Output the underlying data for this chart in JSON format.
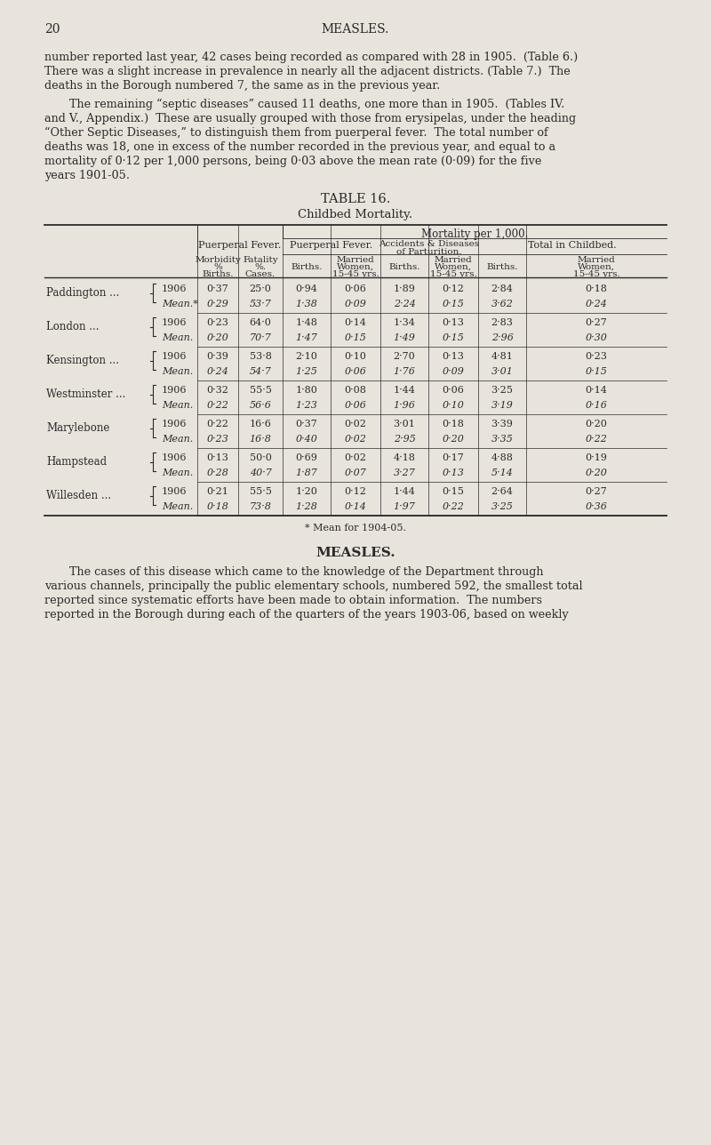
{
  "bg_color": "#e8e4dc",
  "text_color": "#2a2a2a",
  "page_number": "20",
  "page_header": "MEASLES.",
  "para1": "number reported last year, 42 cases being recorded as compared with 28 in 1905.  (Table 6.)\nThere was a slight increase in prevalence in nearly all the adjacent districts. (Table 7.)  The\ndeaths in the Borough numbered 7, the same as in the previous year.",
  "para2": "The remaining “septic diseases” caused 11 deaths, one more than in 1905.  (Tables IV.\nand V., Appendix.)  These are usually grouped with those from erysipelas, under the heading\n“Other Septic Diseases,” to distinguish them from puerperal fever.  The total number of\ndeaths was 18, one in excess of the number recorded in the previous year, and equal to a\nmortality of 0·12 per 1,000 persons, being 0·03 above the mean rate (0·09) for the five\nyears 1901-05.",
  "table_title": "TABLE 16.",
  "table_subtitle": "Childbed Mortality.",
  "rows": [
    {
      "district": "Paddington",
      "suffix": "...",
      "year": "1906",
      "morb": "0·37",
      "fat": "25·0",
      "pf_b": "0·94",
      "pf_mw": "0·06",
      "ac_b": "1·89",
      "ac_mw": "0·12",
      "tot_b": "2·84",
      "tot_mw": "0·18"
    },
    {
      "district": "Paddington",
      "suffix": "...",
      "year": "Mean.*",
      "morb": "0·29",
      "fat": "53·7",
      "pf_b": "1·38",
      "pf_mw": "0·09",
      "ac_b": "2·24",
      "ac_mw": "0·15",
      "tot_b": "3·62",
      "tot_mw": "0·24"
    },
    {
      "district": "London",
      "suffix": "...",
      "year": "1906",
      "morb": "0·23",
      "fat": "64·0",
      "pf_b": "1·48",
      "pf_mw": "0·14",
      "ac_b": "1·34",
      "ac_mw": "0·13",
      "tot_b": "2·83",
      "tot_mw": "0·27"
    },
    {
      "district": "London",
      "suffix": "...",
      "year": "Mean.",
      "morb": "0·20",
      "fat": "70·7",
      "pf_b": "1·47",
      "pf_mw": "0·15",
      "ac_b": "1·49",
      "ac_mw": "0·15",
      "tot_b": "2·96",
      "tot_mw": "0·30"
    },
    {
      "district": "Kensington",
      "suffix": "...",
      "year": "1906",
      "morb": "0·39",
      "fat": "53·8",
      "pf_b": "2·10",
      "pf_mw": "0·10",
      "ac_b": "2·70",
      "ac_mw": "0·13",
      "tot_b": "4·81",
      "tot_mw": "0·23"
    },
    {
      "district": "Kensington",
      "suffix": "...",
      "year": "Mean.",
      "morb": "0·24",
      "fat": "54·7",
      "pf_b": "1·25",
      "pf_mw": "0·06",
      "ac_b": "1·76",
      "ac_mw": "0·09",
      "tot_b": "3·01",
      "tot_mw": "0·15"
    },
    {
      "district": "Westminster",
      "suffix": "...",
      "year": "1906",
      "morb": "0·32",
      "fat": "55·5",
      "pf_b": "1·80",
      "pf_mw": "0·08",
      "ac_b": "1·44",
      "ac_mw": "0·06",
      "tot_b": "3·25",
      "tot_mw": "0·14"
    },
    {
      "district": "Westminster",
      "suffix": "...",
      "year": "Mean.",
      "morb": "0·22",
      "fat": "56·6",
      "pf_b": "1·23",
      "pf_mw": "0·06",
      "ac_b": "1·96",
      "ac_mw": "0·10",
      "tot_b": "3·19",
      "tot_mw": "0·16"
    },
    {
      "district": "Marylebone",
      "suffix": "",
      "year": "1906",
      "morb": "0·22",
      "fat": "16·6",
      "pf_b": "0·37",
      "pf_mw": "0·02",
      "ac_b": "3·01",
      "ac_mw": "0·18",
      "tot_b": "3·39",
      "tot_mw": "0·20"
    },
    {
      "district": "Marylebone",
      "suffix": "",
      "year": "Mean.",
      "morb": "0·23",
      "fat": "16·8",
      "pf_b": "0·40",
      "pf_mw": "0·02",
      "ac_b": "2·95",
      "ac_mw": "0·20",
      "tot_b": "3·35",
      "tot_mw": "0·22"
    },
    {
      "district": "Hampstead",
      "suffix": "",
      "year": "1906",
      "morb": "0·13",
      "fat": "50·0",
      "pf_b": "0·69",
      "pf_mw": "0·02",
      "ac_b": "4·18",
      "ac_mw": "0·17",
      "tot_b": "4·88",
      "tot_mw": "0·19"
    },
    {
      "district": "Hampstead",
      "suffix": "",
      "year": "Mean.",
      "morb": "0·28",
      "fat": "40·7",
      "pf_b": "1·87",
      "pf_mw": "0·07",
      "ac_b": "3·27",
      "ac_mw": "0·13",
      "tot_b": "5·14",
      "tot_mw": "0·20"
    },
    {
      "district": "Willesden",
      "suffix": "...",
      "year": "1906",
      "morb": "0·21",
      "fat": "55·5",
      "pf_b": "1·20",
      "pf_mw": "0·12",
      "ac_b": "1·44",
      "ac_mw": "0·15",
      "tot_b": "2·64",
      "tot_mw": "0·27"
    },
    {
      "district": "Willesden",
      "suffix": "...",
      "year": "Mean.",
      "morb": "0·18",
      "fat": "73·8",
      "pf_b": "1·28",
      "pf_mw": "0·14",
      "ac_b": "1·97",
      "ac_mw": "0·22",
      "tot_b": "3·25",
      "tot_mw": "0·36"
    }
  ],
  "footnote": "* Mean for 1904-05.",
  "measles_header": "MEASLES.",
  "para3": "The cases of this disease which came to the knowledge of the Department through\nvarious channels, principally the public elementary schools, numbered 592, the smallest total\nreported since systematic efforts have been made to obtain information.  The numbers\nreported in the Borough during each of the quarters of the years 1903-06, based on weekly"
}
